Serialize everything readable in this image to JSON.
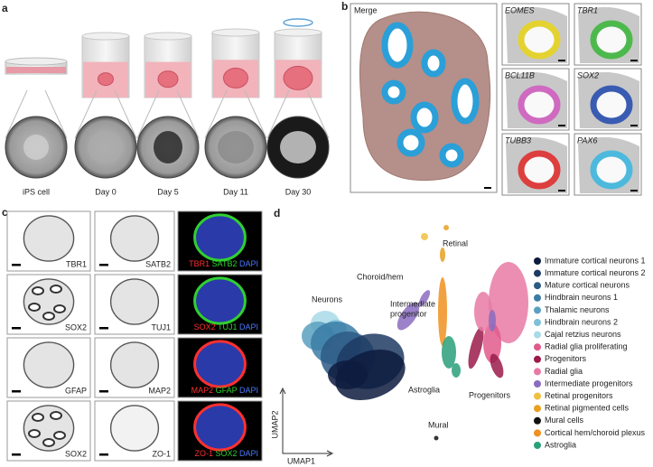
{
  "panel_a": {
    "label": "a",
    "stages": [
      "iPS cell",
      "Day 0",
      "Day 5",
      "Day 11",
      "Day 30"
    ]
  },
  "panel_b": {
    "label": "b",
    "merge": "Merge",
    "markers": [
      "EOMES",
      "TBR1",
      "BCL11B",
      "SOX2",
      "TUBB3",
      "PAX6"
    ]
  },
  "panel_c": {
    "label": "c",
    "rows": [
      {
        "left": "TBR1",
        "middle": "SATB2",
        "overlay": [
          {
            "text": "TBR1",
            "color": "#ff3030"
          },
          {
            "text": "SATB2",
            "color": "#30d030"
          },
          {
            "text": "DAPI",
            "color": "#4a78ff"
          }
        ]
      },
      {
        "left": "SOX2",
        "middle": "TUJ1",
        "overlay": [
          {
            "text": "SOX2",
            "color": "#ff3030"
          },
          {
            "text": "TUJ1",
            "color": "#30d030"
          },
          {
            "text": "DAPI",
            "color": "#4a78ff"
          }
        ]
      },
      {
        "left": "GFAP",
        "middle": "MAP2",
        "overlay": [
          {
            "text": "MAP2",
            "color": "#ff3030"
          },
          {
            "text": "GFAP",
            "color": "#30d030"
          },
          {
            "text": "DAPI",
            "color": "#4a78ff"
          }
        ]
      },
      {
        "left": "SOX2",
        "middle": "ZO-1",
        "overlay": [
          {
            "text": "ZO-1",
            "color": "#ff3030"
          },
          {
            "text": "SOX2",
            "color": "#30d030"
          },
          {
            "text": "DAPI",
            "color": "#4a78ff"
          }
        ]
      }
    ]
  },
  "panel_d": {
    "label": "d",
    "x_axis": "UMAP1",
    "y_axis": "UMAP2",
    "clusters": [
      {
        "lines": [
          "Retinal"
        ],
        "color": "#e8b030"
      },
      {
        "lines": [
          "Choroid/hem"
        ],
        "color": "#e8901e"
      },
      {
        "lines": [
          "Neurons"
        ],
        "color": "#3a6a9a"
      },
      {
        "lines": [
          "Intermediate",
          "progenitor"
        ],
        "color": "#8a6cc0"
      },
      {
        "lines": [
          "Astroglia"
        ],
        "color": "#2aa07a"
      },
      {
        "lines": [
          "Progenitors"
        ],
        "color": "#b03060"
      },
      {
        "lines": [
          "Mural"
        ],
        "color": "#222222"
      }
    ],
    "legend": [
      {
        "name": "Immature cortical neurons 1",
        "color": "#0d1b3e"
      },
      {
        "name": "Immature cortical neurons 2",
        "color": "#1f3b63"
      },
      {
        "name": "Mature cortical neurons",
        "color": "#2d5a85"
      },
      {
        "name": "Hindbrain neurons 1",
        "color": "#3b7da6"
      },
      {
        "name": "Thalamic neurons",
        "color": "#5aa0c0"
      },
      {
        "name": "Hindbrain neurons 2",
        "color": "#7fc0d8"
      },
      {
        "name": "Cajal retzius neurons",
        "color": "#a8dbe8"
      },
      {
        "name": "Radial glia proliferating",
        "color": "#e05a8a"
      },
      {
        "name": "Progenitors",
        "color": "#9b1b4a"
      },
      {
        "name": "Radial glia",
        "color": "#e87aa5"
      },
      {
        "name": "Intermediate progenitors",
        "color": "#8a6cc0"
      },
      {
        "name": "Retinal progenitors",
        "color": "#f0c040"
      },
      {
        "name": "Retinal pigmented cells",
        "color": "#e8a020"
      },
      {
        "name": "Mural cells",
        "color": "#111111"
      },
      {
        "name": "Cortical hem/choroid plexus",
        "color": "#f09020"
      },
      {
        "name": "Astroglia",
        "color": "#2aa07a"
      }
    ]
  }
}
